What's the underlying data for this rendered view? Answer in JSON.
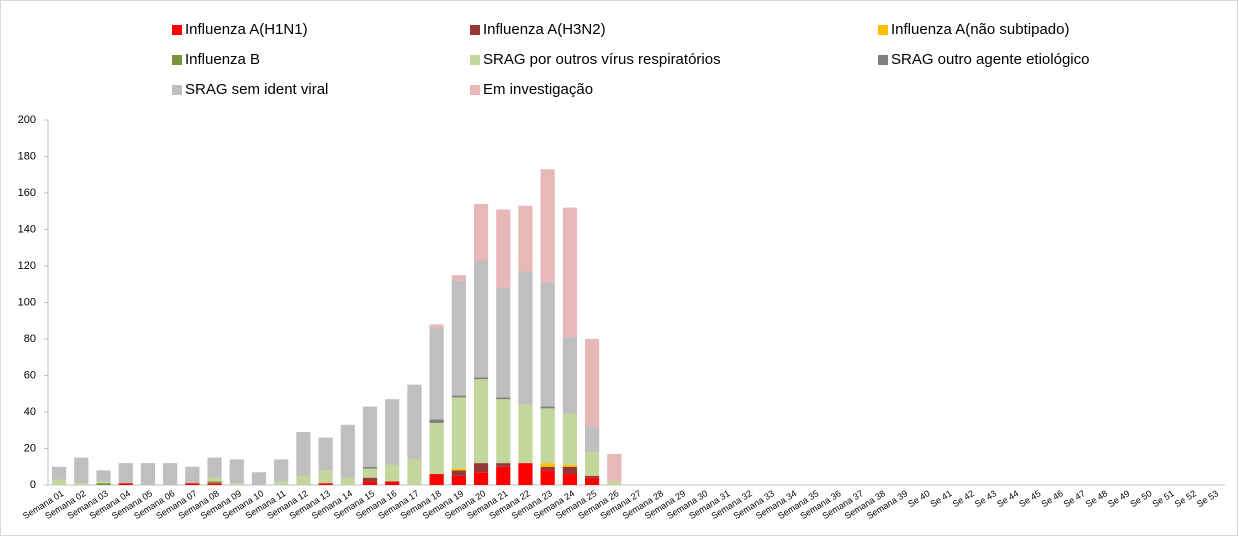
{
  "chart_data": {
    "type": "stacked_bar",
    "categories": [
      "Semana 01",
      "Semana 02",
      "Semana 03",
      "Semana 04",
      "Semana 05",
      "Semana 06",
      "Semana 07",
      "Semana 08",
      "Semana 09",
      "Semana 10",
      "Semana 11",
      "Semana 12",
      "Semana 13",
      "Semana 14",
      "Semana 15",
      "Semana 16",
      "Semana 17",
      "Semana 18",
      "Semana 19",
      "Semana 20",
      "Semana 21",
      "Semana 22",
      "Semana 23",
      "Semana 24",
      "Semana 25",
      "Semana 26",
      "Semana 27",
      "Semana 28",
      "Semana 29",
      "Semana 30",
      "Semana 31",
      "Semana 32",
      "Semana 33",
      "Semana 34",
      "Semana 35",
      "Semana 36",
      "Semana 37",
      "Semana 38",
      "Semana 39",
      "Se 40",
      "Se 41",
      "Se 42",
      "Se 43",
      "Se 44",
      "Se 45",
      "Se 46",
      "Se 47",
      "Se 48",
      "Se 49",
      "Se 50",
      "Se 51",
      "Se 52",
      "Se 53"
    ],
    "series": [
      {
        "name": "Influenza A(H1N1)",
        "color": "#ff0000",
        "values": [
          0,
          0,
          0,
          1,
          0,
          0,
          1,
          1,
          0,
          0,
          0,
          0,
          1,
          0,
          2,
          2,
          0,
          6,
          5,
          7,
          10,
          12,
          8,
          6,
          4,
          0,
          0,
          0,
          0,
          0,
          0,
          0,
          0,
          0,
          0,
          0,
          0,
          0,
          0,
          0,
          0,
          0,
          0,
          0,
          0,
          0,
          0,
          0,
          0,
          0,
          0,
          0,
          0
        ]
      },
      {
        "name": "Influenza A(H3N2)",
        "color": "#953735",
        "values": [
          0,
          0,
          0,
          0,
          0,
          0,
          0,
          0,
          0,
          0,
          0,
          0,
          0,
          0,
          2,
          0,
          0,
          0,
          3,
          5,
          2,
          0,
          2,
          4,
          1,
          0,
          0,
          0,
          0,
          0,
          0,
          0,
          0,
          0,
          0,
          0,
          0,
          0,
          0,
          0,
          0,
          0,
          0,
          0,
          0,
          0,
          0,
          0,
          0,
          0,
          0,
          0,
          0
        ]
      },
      {
        "name": "Influenza A(não subtipado)",
        "color": "#ffc000",
        "values": [
          0,
          0,
          0,
          0,
          0,
          0,
          0,
          0,
          0,
          0,
          0,
          0,
          0,
          0,
          0,
          0,
          0,
          0,
          1,
          0,
          0,
          0,
          2,
          1,
          0,
          0,
          0,
          0,
          0,
          0,
          0,
          0,
          0,
          0,
          0,
          0,
          0,
          0,
          0,
          0,
          0,
          0,
          0,
          0,
          0,
          0,
          0,
          0,
          0,
          0,
          0,
          0,
          0
        ]
      },
      {
        "name": "Influenza B",
        "color": "#77933c",
        "values": [
          0,
          0,
          1,
          0,
          0,
          0,
          0,
          1,
          0,
          0,
          0,
          0,
          0,
          0,
          0,
          0,
          0,
          0,
          0,
          0,
          0,
          0,
          0,
          0,
          0,
          0,
          0,
          0,
          0,
          0,
          0,
          0,
          0,
          0,
          0,
          0,
          0,
          0,
          0,
          0,
          0,
          0,
          0,
          0,
          0,
          0,
          0,
          0,
          0,
          0,
          0,
          0,
          0
        ]
      },
      {
        "name": "SRAG por outros vírus respiratórios",
        "color": "#c3d69b",
        "values": [
          3,
          1,
          1,
          0,
          0,
          0,
          0,
          2,
          1,
          0,
          2,
          5,
          7,
          4,
          5,
          9,
          14,
          28,
          39,
          46,
          35,
          32,
          30,
          28,
          13,
          2,
          0,
          0,
          0,
          0,
          0,
          0,
          0,
          0,
          0,
          0,
          0,
          0,
          0,
          0,
          0,
          0,
          0,
          0,
          0,
          0,
          0,
          0,
          0,
          0,
          0,
          0,
          0
        ]
      },
      {
        "name": "SRAG outro agente etiológico",
        "color": "#7f7f7f",
        "values": [
          0,
          0,
          0,
          0,
          0,
          0,
          0,
          0,
          0,
          0,
          0,
          0,
          0,
          0,
          1,
          0,
          0,
          2,
          1,
          1,
          1,
          0,
          1,
          0,
          0,
          0,
          0,
          0,
          0,
          0,
          0,
          0,
          0,
          0,
          0,
          0,
          0,
          0,
          0,
          0,
          0,
          0,
          0,
          0,
          0,
          0,
          0,
          0,
          0,
          0,
          0,
          0,
          0
        ]
      },
      {
        "name": "SRAG sem ident viral",
        "color": "#bfbfbf",
        "values": [
          7,
          14,
          6,
          11,
          12,
          12,
          9,
          11,
          13,
          7,
          12,
          24,
          18,
          29,
          33,
          36,
          41,
          50,
          63,
          64,
          60,
          73,
          68,
          42,
          14,
          0,
          0,
          0,
          0,
          0,
          0,
          0,
          0,
          0,
          0,
          0,
          0,
          0,
          0,
          0,
          0,
          0,
          0,
          0,
          0,
          0,
          0,
          0,
          0,
          0,
          0,
          0,
          0
        ]
      },
      {
        "name": "Em investigação",
        "color": "#e6b9b8",
        "values": [
          0,
          0,
          0,
          0,
          0,
          0,
          0,
          0,
          0,
          0,
          0,
          0,
          0,
          0,
          0,
          0,
          0,
          2,
          3,
          31,
          43,
          36,
          62,
          71,
          48,
          15,
          0,
          0,
          0,
          0,
          0,
          0,
          0,
          0,
          0,
          0,
          0,
          0,
          0,
          0,
          0,
          0,
          0,
          0,
          0,
          0,
          0,
          0,
          0,
          0,
          0,
          0,
          0
        ]
      }
    ],
    "ylim": [
      0,
      200
    ],
    "yticks": [
      0,
      20,
      40,
      60,
      80,
      100,
      120,
      140,
      160,
      180,
      200
    ],
    "grid": false
  }
}
